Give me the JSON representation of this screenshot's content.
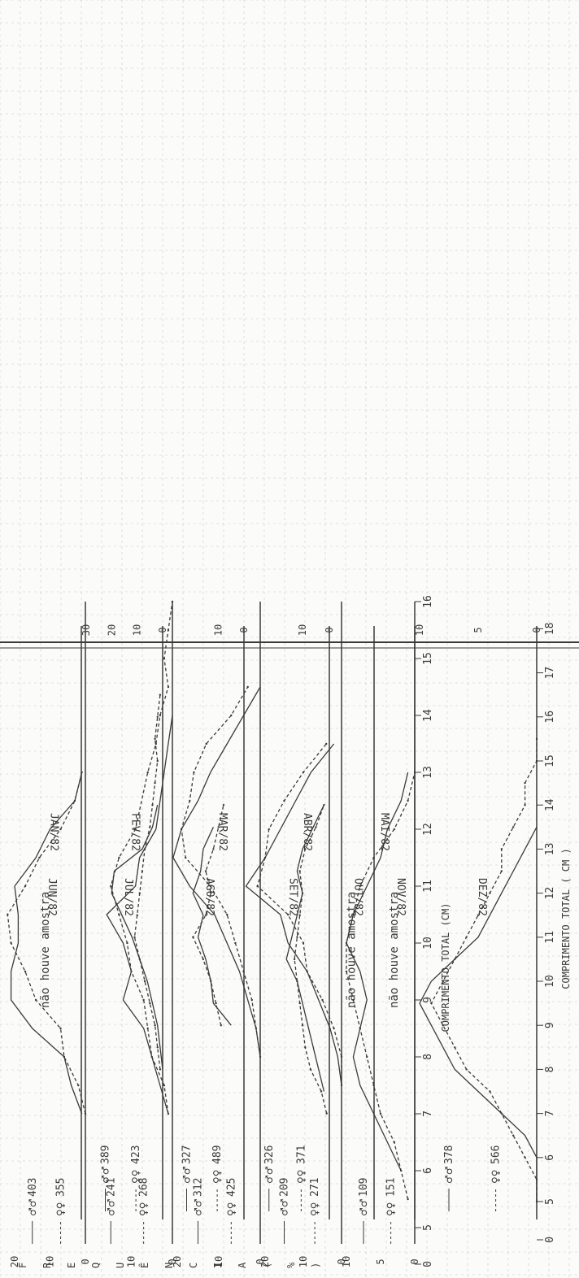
{
  "colors": {
    "paper": "#fbfbf9",
    "grid": "#c9c9c9",
    "ink": "#3a3a3a"
  },
  "chart_data": [
    {
      "type": "line",
      "panel": "left",
      "title": "JAN/82",
      "xlabel": "COMPRIMENTO TOTAL (CM)",
      "ylabel": "FREQUÊNCIA (%)",
      "x": [
        7,
        7.5,
        8,
        8.5,
        9,
        9.5,
        10,
        10.5,
        11,
        11.5,
        12,
        12.5,
        13
      ],
      "yticks": [
        "0",
        "10",
        "20"
      ],
      "ylim": [
        0,
        20
      ],
      "series": [
        {
          "name": "♂♂",
          "count": "403",
          "style": "solid",
          "values": [
            1,
            4,
            6,
            15,
            21,
            21,
            19,
            19,
            20,
            14,
            10,
            3,
            1
          ]
        },
        {
          "name": "♀♀",
          "count": "355",
          "style": "dashed",
          "values": [
            0,
            2,
            6,
            7,
            14,
            17,
            21,
            22,
            17,
            13,
            7,
            3,
            1
          ]
        }
      ]
    },
    {
      "type": "line",
      "panel": "left",
      "title": "FEV/82",
      "x": [
        7,
        7.5,
        8,
        8.5,
        9,
        9.5,
        10,
        10.5,
        11,
        11.5,
        12,
        13,
        13.5,
        14,
        14.5,
        15,
        15.5,
        16
      ],
      "yticks": [
        "0",
        "10"
      ],
      "ylim": [
        0,
        20
      ],
      "series": [
        {
          "name": "♂♂",
          "count": "241",
          "style": "solid",
          "values": [
            1,
            3,
            5,
            7,
            12,
            10,
            12,
            16,
            9,
            8,
            4,
            2,
            1,
            0,
            null,
            null,
            null,
            null
          ]
        },
        {
          "name": "♀♀",
          "count": "268",
          "style": "dashed",
          "values": [
            1,
            2,
            5,
            6,
            7,
            10,
            11,
            13,
            15,
            13,
            9,
            6,
            4,
            3,
            1,
            2,
            1,
            0
          ]
        }
      ]
    },
    {
      "type": "line",
      "panel": "left",
      "title": "MAR/82",
      "x": [
        8,
        8.5,
        9,
        9.5,
        10,
        10.5,
        11,
        11.5,
        12,
        12.5,
        13,
        13.5,
        14,
        14.5
      ],
      "yticks": [
        "0",
        "10",
        "20"
      ],
      "ylim": [
        0,
        20
      ],
      "series": [
        {
          "name": "♂♂",
          "count": "312",
          "style": "solid",
          "values": [
            0,
            1,
            3,
            5,
            8,
            11,
            17,
            21,
            19,
            15,
            12,
            8,
            4,
            0
          ]
        },
        {
          "name": "♀♀",
          "count": "425",
          "style": "dashed",
          "values": [
            0,
            1,
            2,
            4,
            6,
            8,
            12,
            18,
            19,
            17,
            16,
            13,
            7,
            3
          ]
        }
      ]
    },
    {
      "type": "line",
      "panel": "left",
      "title": "ABR/82",
      "x": [
        7.5,
        8,
        8.5,
        9,
        9.5,
        10,
        10.5,
        11,
        11.5,
        12,
        12.5,
        13,
        13.5
      ],
      "yticks": [
        "0",
        "10",
        "20"
      ],
      "ylim": [
        0,
        20
      ],
      "series": [
        {
          "name": "♂♂",
          "count": "209",
          "style": "solid",
          "values": [
            0,
            1,
            3,
            6,
            9,
            14,
            16,
            25,
            20,
            16,
            12,
            8,
            2
          ]
        },
        {
          "name": "♀♀",
          "count": "271",
          "style": "dashed",
          "values": [
            0,
            0,
            2,
            5,
            9,
            10,
            14,
            22,
            20,
            19,
            15,
            10,
            4
          ]
        }
      ]
    },
    {
      "type": "line",
      "panel": "left",
      "title": "MAI/82",
      "xlabel": "COMPRIMENTO TOTAL (CM)",
      "x": [
        5,
        5.5,
        6,
        6.5,
        7,
        7.5,
        8,
        8.5,
        9,
        9.5,
        10,
        10.5,
        11,
        11.5,
        12,
        12.5,
        13,
        13.5,
        14,
        14.5,
        15,
        15.5,
        16
      ],
      "xticks": [
        "0",
        "5",
        "6",
        "7",
        "8",
        "9",
        "10",
        "11",
        "12",
        "13",
        "14",
        "15",
        "16"
      ],
      "yticks": [
        "0",
        "5",
        "10"
      ],
      "ylim": [
        0,
        10
      ],
      "series": [
        {
          "name": "♂♂",
          "count": "109",
          "style": "solid",
          "values": [
            null,
            null,
            2,
            4,
            6,
            8,
            9,
            8,
            7,
            8,
            10,
            9,
            7,
            5,
            4,
            2,
            1,
            null,
            null,
            null,
            null,
            null,
            null
          ]
        },
        {
          "name": "♀♀",
          "count": "151",
          "style": "dashed",
          "values": [
            null,
            1,
            2,
            3,
            5,
            6,
            7,
            8,
            9,
            10,
            10,
            9,
            8,
            6,
            3,
            1,
            0,
            null,
            null,
            null,
            null,
            null,
            null
          ]
        }
      ]
    },
    {
      "type": "line",
      "panel": "right",
      "title": "JUN/82",
      "annotation": "não houve amostra",
      "yticks": [],
      "ylim": [
        0,
        30
      ],
      "series": []
    },
    {
      "type": "line",
      "panel": "right",
      "title": "JUL/82",
      "x": [
        8,
        8.5,
        9,
        9.5,
        10,
        10.5,
        11,
        11.5,
        12,
        12.5,
        13,
        13.5,
        14,
        14.5,
        15,
        15.5,
        16,
        16.5
      ],
      "yticks": [
        "0",
        "10",
        "20",
        "30"
      ],
      "ylim": [
        0,
        30
      ],
      "series": [
        {
          "name": "♂♂",
          "count": "389",
          "style": "solid",
          "values": [
            0,
            1,
            2,
            4,
            6,
            9,
            12,
            16,
            20,
            19,
            8,
            4,
            2,
            null,
            null,
            null,
            null,
            null
          ]
        },
        {
          "name": "♀♀",
          "count": "423",
          "style": "dashed",
          "values": [
            1,
            2,
            3,
            5,
            7,
            9,
            11,
            10,
            9,
            8,
            7,
            5,
            4,
            3,
            2,
            3,
            2,
            1
          ]
        }
      ]
    },
    {
      "type": "line",
      "panel": "right",
      "title": "AGO/82",
      "x": [
        9,
        9.5,
        10,
        10.5,
        11,
        11.5,
        12,
        12.5,
        13,
        13.5,
        14
      ],
      "yticks": [
        "0",
        "10"
      ],
      "ylim": [
        0,
        30
      ],
      "series": [
        {
          "name": "♂♂",
          "count": "327",
          "style": "solid",
          "values": [
            5,
            12,
            13,
            15,
            18,
            16,
            20,
            17,
            16,
            12,
            null
          ]
        },
        {
          "name": "♀♀",
          "count": "489",
          "style": "dashed",
          "values": [
            9,
            11,
            13,
            16,
            20,
            15,
            13,
            15,
            12,
            10,
            8
          ]
        }
      ]
    },
    {
      "type": "line",
      "panel": "right",
      "title": "SET/82",
      "x": [
        7,
        7.5,
        8,
        8.5,
        9,
        9.5,
        10,
        10.5,
        11,
        11.5,
        12,
        12.5,
        13,
        13.5,
        14
      ],
      "yticks": [
        "0",
        "10"
      ],
      "ylim": [
        0,
        30
      ],
      "series": [
        {
          "name": "♂♂",
          "count": "326",
          "style": "solid",
          "values": [
            null,
            2,
            4,
            6,
            8,
            10,
            12,
            16,
            14,
            12,
            10,
            12,
            10,
            6,
            2
          ]
        },
        {
          "name": "♀♀",
          "count": "371",
          "style": "dashed",
          "values": [
            1,
            3,
            7,
            9,
            10,
            11,
            12,
            13,
            12,
            11,
            10,
            11,
            9,
            5,
            2
          ]
        }
      ]
    },
    {
      "type": "line",
      "panel": "right",
      "title": "OUT/82",
      "annotation": "não houve amostra",
      "yticks": [],
      "ylim": [
        0,
        30
      ],
      "series": []
    },
    {
      "type": "line",
      "panel": "right",
      "title": "NOV/82",
      "annotation": "não houve amostra",
      "yticks": [],
      "ylim": [
        0,
        30
      ],
      "series": []
    },
    {
      "type": "line",
      "panel": "right",
      "title": "DEZ/82",
      "xlabel": "COMPRIMENTO TOTAL ( CM )",
      "x": [
        5,
        5.5,
        6,
        6.5,
        7,
        7.5,
        8,
        8.5,
        9,
        9.5,
        10,
        10.5,
        11,
        11.5,
        12,
        12.5,
        13,
        13.5,
        14,
        14.5,
        15,
        15.5,
        16
      ],
      "xticks": [
        "0",
        "5",
        "6",
        "7",
        "8",
        "9",
        "10",
        "11",
        "12",
        "13",
        "14",
        "15",
        "16",
        "17",
        "18"
      ],
      "yticks": [
        "0",
        "5",
        "10"
      ],
      "ylim": [
        0,
        10
      ],
      "series": [
        {
          "name": "♂♂",
          "count": "378",
          "style": "solid",
          "values": [
            0,
            0,
            0,
            1,
            3,
            5,
            7,
            8,
            9,
            10,
            9,
            7,
            5,
            4,
            3,
            2,
            1,
            0,
            null,
            null,
            null,
            null,
            null
          ]
        },
        {
          "name": "♀♀",
          "count": "566",
          "style": "dashed",
          "values": [
            0,
            0,
            1,
            2,
            3,
            4,
            6,
            7,
            8,
            9,
            8,
            7,
            6,
            5,
            4,
            3,
            3,
            2,
            1,
            1,
            0,
            0,
            null
          ]
        }
      ]
    }
  ]
}
